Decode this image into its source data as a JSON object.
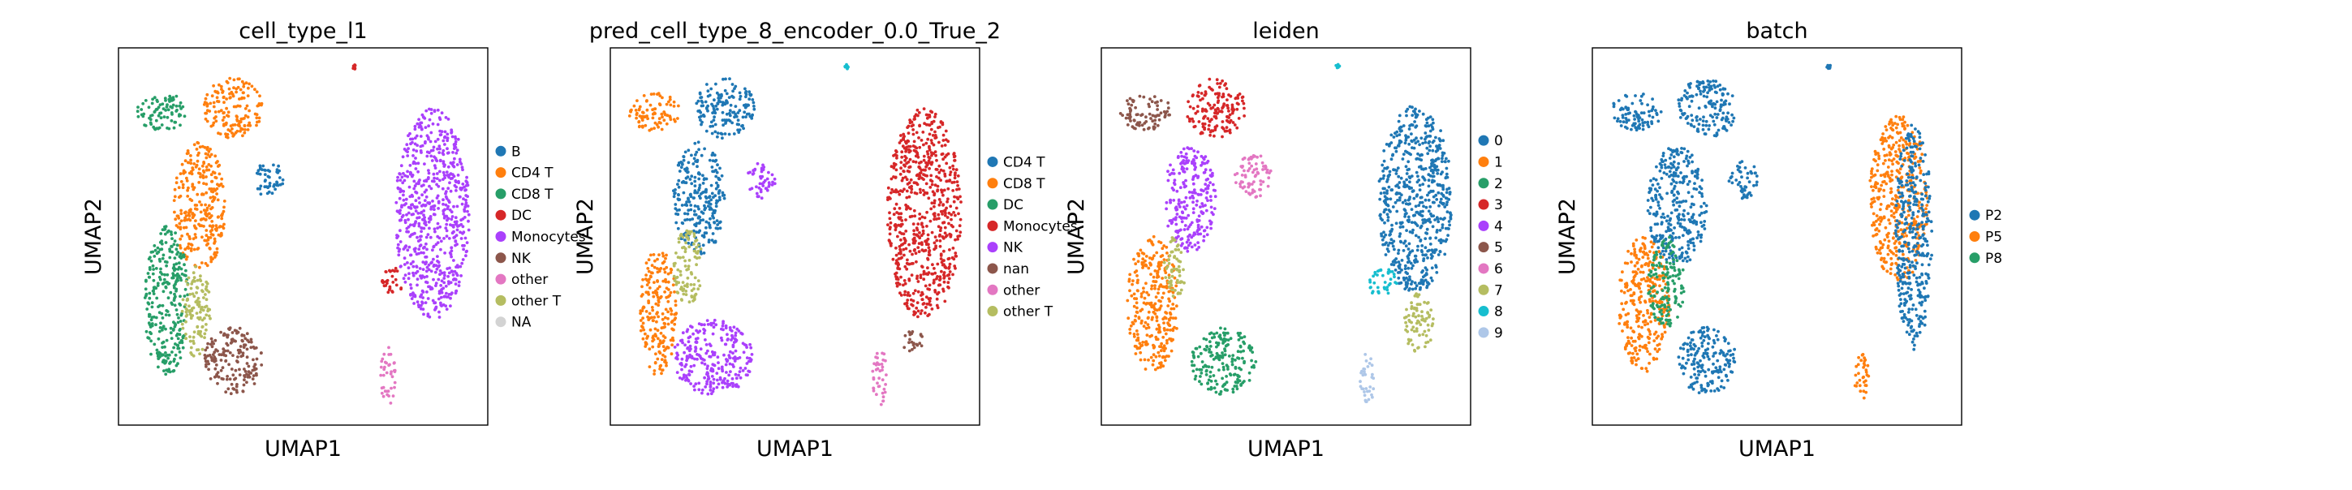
{
  "palette": {
    "blue": "#1f77b4",
    "orange": "#ff7f0e",
    "green": "#279e68",
    "red": "#d62728",
    "purple": "#aa40fc",
    "brown": "#8c564b",
    "pink": "#e377c2",
    "olive": "#b5bd61",
    "cyan": "#17becf",
    "lightblue": "#aec7e8",
    "na": "#d3d3d3"
  },
  "chart_data": [
    {
      "type": "scatter",
      "title": "cell_type_l1",
      "xlabel": "UMAP1",
      "ylabel": "UMAP2",
      "legend": [
        {
          "label": "B",
          "color": "#1f77b4"
        },
        {
          "label": "CD4 T",
          "color": "#ff7f0e"
        },
        {
          "label": "CD8 T",
          "color": "#279e68"
        },
        {
          "label": "DC",
          "color": "#d62728"
        },
        {
          "label": "Monocytes",
          "color": "#aa40fc"
        },
        {
          "label": "NK",
          "color": "#8c564b"
        },
        {
          "label": "other",
          "color": "#e377c2"
        },
        {
          "label": "other T",
          "color": "#b5bd61"
        },
        {
          "label": "NA",
          "color": "#d3d3d3"
        }
      ],
      "clusters": [
        {
          "color": "#279e68",
          "cx": 0.12,
          "cy": 0.83,
          "rx": 0.07,
          "ry": 0.05
        },
        {
          "color": "#ff7f0e",
          "cx": 0.31,
          "cy": 0.84,
          "rx": 0.08,
          "ry": 0.08
        },
        {
          "color": "#ff7f0e",
          "cx": 0.22,
          "cy": 0.58,
          "rx": 0.07,
          "ry": 0.17
        },
        {
          "color": "#1f77b4",
          "cx": 0.41,
          "cy": 0.65,
          "rx": 0.04,
          "ry": 0.05
        },
        {
          "color": "#279e68",
          "cx": 0.13,
          "cy": 0.33,
          "rx": 0.06,
          "ry": 0.2
        },
        {
          "color": "#b5bd61",
          "cx": 0.21,
          "cy": 0.3,
          "rx": 0.04,
          "ry": 0.12
        },
        {
          "color": "#8c564b",
          "cx": 0.31,
          "cy": 0.17,
          "rx": 0.08,
          "ry": 0.09
        },
        {
          "color": "#aa40fc",
          "cx": 0.85,
          "cy": 0.56,
          "rx": 0.1,
          "ry": 0.28
        },
        {
          "color": "#d62728",
          "cx": 0.74,
          "cy": 0.38,
          "rx": 0.03,
          "ry": 0.04
        },
        {
          "color": "#e377c2",
          "cx": 0.73,
          "cy": 0.13,
          "rx": 0.02,
          "ry": 0.08
        },
        {
          "color": "#d62728",
          "cx": 0.64,
          "cy": 0.95,
          "rx": 0.006,
          "ry": 0.006
        }
      ]
    },
    {
      "type": "scatter",
      "title": "pred_cell_type_8_encoder_0.0_True_2",
      "xlabel": "UMAP1",
      "ylabel": "UMAP2",
      "legend": [
        {
          "label": "CD4 T",
          "color": "#1f77b4"
        },
        {
          "label": "CD8 T",
          "color": "#ff7f0e"
        },
        {
          "label": "DC",
          "color": "#279e68"
        },
        {
          "label": "Monocytes",
          "color": "#d62728"
        },
        {
          "label": "NK",
          "color": "#aa40fc"
        },
        {
          "label": "nan",
          "color": "#8c564b"
        },
        {
          "label": "other",
          "color": "#e377c2"
        },
        {
          "label": "other T",
          "color": "#b5bd61"
        }
      ],
      "clusters": [
        {
          "color": "#ff7f0e",
          "cx": 0.12,
          "cy": 0.83,
          "rx": 0.07,
          "ry": 0.05
        },
        {
          "color": "#1f77b4",
          "cx": 0.31,
          "cy": 0.84,
          "rx": 0.08,
          "ry": 0.08
        },
        {
          "color": "#1f77b4",
          "cx": 0.24,
          "cy": 0.6,
          "rx": 0.07,
          "ry": 0.15
        },
        {
          "color": "#aa40fc",
          "cx": 0.41,
          "cy": 0.65,
          "rx": 0.04,
          "ry": 0.05
        },
        {
          "color": "#ff7f0e",
          "cx": 0.13,
          "cy": 0.3,
          "rx": 0.05,
          "ry": 0.17
        },
        {
          "color": "#b5bd61",
          "cx": 0.21,
          "cy": 0.42,
          "rx": 0.04,
          "ry": 0.1
        },
        {
          "color": "#aa40fc",
          "cx": 0.28,
          "cy": 0.18,
          "rx": 0.11,
          "ry": 0.1
        },
        {
          "color": "#d62728",
          "cx": 0.85,
          "cy": 0.56,
          "rx": 0.1,
          "ry": 0.28
        },
        {
          "color": "#8c564b",
          "cx": 0.82,
          "cy": 0.22,
          "rx": 0.03,
          "ry": 0.03
        },
        {
          "color": "#e377c2",
          "cx": 0.73,
          "cy": 0.13,
          "rx": 0.02,
          "ry": 0.08
        },
        {
          "color": "#17becf",
          "cx": 0.64,
          "cy": 0.95,
          "rx": 0.006,
          "ry": 0.006
        }
      ]
    },
    {
      "type": "scatter",
      "title": "leiden",
      "xlabel": "UMAP1",
      "ylabel": "UMAP2",
      "legend": [
        {
          "label": "0",
          "color": "#1f77b4"
        },
        {
          "label": "1",
          "color": "#ff7f0e"
        },
        {
          "label": "2",
          "color": "#279e68"
        },
        {
          "label": "3",
          "color": "#d62728"
        },
        {
          "label": "4",
          "color": "#aa40fc"
        },
        {
          "label": "5",
          "color": "#8c564b"
        },
        {
          "label": "6",
          "color": "#e377c2"
        },
        {
          "label": "7",
          "color": "#b5bd61"
        },
        {
          "label": "8",
          "color": "#17becf"
        },
        {
          "label": "9",
          "color": "#aec7e8"
        }
      ],
      "clusters": [
        {
          "color": "#8c564b",
          "cx": 0.12,
          "cy": 0.83,
          "rx": 0.07,
          "ry": 0.05
        },
        {
          "color": "#d62728",
          "cx": 0.31,
          "cy": 0.84,
          "rx": 0.08,
          "ry": 0.08
        },
        {
          "color": "#aa40fc",
          "cx": 0.24,
          "cy": 0.6,
          "rx": 0.07,
          "ry": 0.14
        },
        {
          "color": "#e377c2",
          "cx": 0.41,
          "cy": 0.66,
          "rx": 0.05,
          "ry": 0.06
        },
        {
          "color": "#ff7f0e",
          "cx": 0.14,
          "cy": 0.32,
          "rx": 0.07,
          "ry": 0.18
        },
        {
          "color": "#b5bd61",
          "cx": 0.2,
          "cy": 0.42,
          "rx": 0.03,
          "ry": 0.08
        },
        {
          "color": "#279e68",
          "cx": 0.33,
          "cy": 0.17,
          "rx": 0.09,
          "ry": 0.09
        },
        {
          "color": "#1f77b4",
          "cx": 0.85,
          "cy": 0.6,
          "rx": 0.1,
          "ry": 0.25
        },
        {
          "color": "#17becf",
          "cx": 0.76,
          "cy": 0.38,
          "rx": 0.04,
          "ry": 0.04
        },
        {
          "color": "#b5bd61",
          "cx": 0.86,
          "cy": 0.27,
          "rx": 0.04,
          "ry": 0.08
        },
        {
          "color": "#aec7e8",
          "cx": 0.72,
          "cy": 0.12,
          "rx": 0.02,
          "ry": 0.07
        },
        {
          "color": "#17becf",
          "cx": 0.64,
          "cy": 0.95,
          "rx": 0.006,
          "ry": 0.006
        }
      ]
    },
    {
      "type": "scatter",
      "title": "batch",
      "xlabel": "UMAP1",
      "ylabel": "UMAP2",
      "legend": [
        {
          "label": "P2",
          "color": "#1f77b4"
        },
        {
          "label": "P5",
          "color": "#ff7f0e"
        },
        {
          "label": "P8",
          "color": "#279e68"
        }
      ],
      "clusters": [
        {
          "color": "#1f77b4",
          "cx": 0.12,
          "cy": 0.83,
          "rx": 0.07,
          "ry": 0.05
        },
        {
          "color": "#1f77b4",
          "cx": 0.31,
          "cy": 0.84,
          "rx": 0.08,
          "ry": 0.08
        },
        {
          "color": "#1f77b4",
          "cx": 0.23,
          "cy": 0.58,
          "rx": 0.08,
          "ry": 0.16
        },
        {
          "color": "#1f77b4",
          "cx": 0.41,
          "cy": 0.65,
          "rx": 0.04,
          "ry": 0.05
        },
        {
          "color": "#ff7f0e",
          "cx": 0.14,
          "cy": 0.32,
          "rx": 0.07,
          "ry": 0.18
        },
        {
          "color": "#279e68",
          "cx": 0.2,
          "cy": 0.38,
          "rx": 0.05,
          "ry": 0.12
        },
        {
          "color": "#1f77b4",
          "cx": 0.31,
          "cy": 0.17,
          "rx": 0.08,
          "ry": 0.09
        },
        {
          "color": "#ff7f0e",
          "cx": 0.83,
          "cy": 0.6,
          "rx": 0.08,
          "ry": 0.22
        },
        {
          "color": "#1f77b4",
          "cx": 0.87,
          "cy": 0.5,
          "rx": 0.05,
          "ry": 0.3
        },
        {
          "color": "#ff7f0e",
          "cx": 0.73,
          "cy": 0.13,
          "rx": 0.02,
          "ry": 0.07
        },
        {
          "color": "#1f77b4",
          "cx": 0.64,
          "cy": 0.95,
          "rx": 0.006,
          "ry": 0.006
        }
      ]
    }
  ]
}
